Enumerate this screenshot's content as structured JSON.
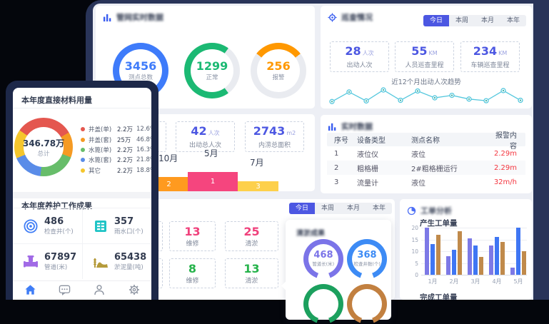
{
  "colors": {
    "navy_frame": "#293459",
    "phone_frame": "#1d2849",
    "dash_bg": "#edeff5",
    "accent_indigo": "#4c57e2",
    "accent_blue": "#3e7bfa",
    "green": "#1bb973",
    "orange": "#ff9800",
    "pink": "#f0417c",
    "stat_green": "#26b34b",
    "alarm_red": "#f4353f",
    "line_cyan": "#54c7dd"
  },
  "network_panel": {
    "title": "管网实时数据"
  },
  "inspection_panel": {
    "title": "巡查情况",
    "tabs": [
      "今日",
      "本周",
      "本月",
      "本年"
    ],
    "active_tab": "今日",
    "stats": [
      {
        "value": "28",
        "unit": "人次",
        "label": "出动人次"
      },
      {
        "value": "55",
        "unit": "KM",
        "label": "人员巡查里程"
      },
      {
        "value": "234",
        "unit": "KM",
        "label": "车辆巡查里程"
      }
    ],
    "trend_title": "近12个月出动人次趋势"
  },
  "realtime_panel": {
    "title": "实时数据",
    "table": {
      "headers": [
        "序号",
        "设备类型",
        "测点名称",
        "报警内容"
      ],
      "rows": [
        [
          "1",
          "液位仪",
          "液位",
          "2.29m"
        ],
        [
          "2",
          "粗格栅",
          "2#粗格栅运行",
          "2.29m"
        ],
        [
          "3",
          "流量计",
          "液位",
          "32m/h"
        ]
      ]
    }
  },
  "dispatch_panel": {
    "stats": [
      {
        "value": "42",
        "unit": "人次",
        "label": "出动总人次"
      },
      {
        "value": "2743",
        "unit": "m2",
        "label": "内涝总面积"
      }
    ]
  },
  "work_panel": {
    "tabs": [
      "今日",
      "本周",
      "本月",
      "本年"
    ],
    "active_tab": "今日",
    "stats_rows": [
      [
        {
          "value": "13",
          "label": "维修"
        },
        {
          "value": "25",
          "label": "清淤"
        }
      ],
      [
        {
          "value": "8",
          "label": "维修"
        },
        {
          "value": "13",
          "label": "清淤"
        }
      ]
    ],
    "results_title": "清淤成果"
  },
  "workorder_panel": {
    "title": "工单分析",
    "subtitle1": "产生工单量",
    "subtitle2": "完成工单量"
  },
  "phone": {
    "materials_title": "本年度直接材料用量",
    "materials_total": "346.78万",
    "materials_total_label": "总计",
    "maintenance_title": "本年度养护工作成果",
    "maintenance_stats": [
      {
        "value": "486",
        "label": "检查井(个)",
        "icon": "well-icon"
      },
      {
        "value": "357",
        "label": "雨水口(个)",
        "icon": "grate-icon"
      },
      {
        "value": "67897",
        "label": "管道(米)",
        "icon": "pipe-icon"
      },
      {
        "value": "65438",
        "label": "淤泥量(吨)",
        "icon": "sludge-icon"
      }
    ]
  },
  "chart_data": [
    {
      "id": "network-rings",
      "type": "pie",
      "title": "管网实时数据",
      "items": [
        {
          "label": "测点总数",
          "value": "3456",
          "pct": 100,
          "from": 0,
          "color": "#3e7bfa"
        },
        {
          "label": "正常",
          "value": "1299",
          "pct": 70,
          "from": 144,
          "color": "#1bb973"
        },
        {
          "label": "报警",
          "value": "256",
          "pct": 29,
          "from": -52,
          "color": "#ff9800"
        }
      ]
    },
    {
      "id": "inspection-trend",
      "type": "line",
      "title": "近12个月出动人次趋势",
      "x": [
        "1",
        "2",
        "3",
        "4",
        "5",
        "6",
        "7",
        "8",
        "9",
        "10",
        "11",
        "12"
      ],
      "values": [
        30,
        76,
        33,
        86,
        36,
        81,
        48,
        60,
        42,
        34,
        83,
        36
      ],
      "ylim": [
        0,
        100
      ],
      "color": "#54c7dd",
      "grid": false,
      "legend": "none"
    },
    {
      "id": "materials-donut",
      "type": "pie",
      "title": "本年度直接材料用量",
      "total": "346.78万",
      "total_label": "总计",
      "categories": [
        "井盖(单)",
        "井盖(套)",
        "水篦(单)",
        "水篦(套)",
        "其它"
      ],
      "values": [
        "2.2万",
        "25万",
        "2.2万",
        "2.2万",
        "2.2万"
      ],
      "pcts": [
        12.6,
        46.8,
        16.3,
        21.8,
        18.8
      ],
      "ring_pcts": [
        32,
        14,
        21,
        17,
        16
      ],
      "colors": [
        "#e4574f",
        "#f59a23",
        "#67bd6a",
        "#5a8ce8",
        "#f5c62d"
      ],
      "start_deg": -55,
      "legend_position": "right"
    },
    {
      "id": "month-rank",
      "type": "bar",
      "categories": [
        "10月",
        "5月",
        "7月"
      ],
      "values": [
        2,
        1,
        3
      ],
      "heights": [
        20,
        27,
        14
      ],
      "colors": [
        "#ff9a1f",
        "#f5457e",
        "#fdd04b"
      ]
    },
    {
      "id": "dredge-gauges",
      "type": "pie",
      "title": "清淤成果",
      "items": [
        {
          "label": "管道长(米)",
          "value": "468",
          "pct": 78,
          "color": "#7b74e8"
        },
        {
          "label": "检查井数(个)",
          "value": "368",
          "pct": 78,
          "color": "#3d8bf5"
        },
        {
          "label": "",
          "value": "",
          "pct": 78,
          "color": "#1ca05e"
        },
        {
          "label": "",
          "value": "",
          "pct": 78,
          "color": "#c28040"
        }
      ]
    },
    {
      "id": "workorder-bars",
      "type": "bar",
      "title": "产生工单量",
      "categories": [
        "1月",
        "2月",
        "3月",
        "4月",
        "5月"
      ],
      "ylim": [
        0,
        20
      ],
      "yticks": [
        0,
        5,
        10,
        15,
        20
      ],
      "grid": true,
      "series": [
        {
          "color": "#7d79e6",
          "values": [
            20,
            8,
            15.5,
            12.5,
            3
          ]
        },
        {
          "color": "#3f76f3",
          "values": [
            13,
            10.5,
            12.5,
            16,
            20
          ]
        },
        {
          "color": "#c08a4b",
          "values": [
            17,
            18.5,
            7.5,
            14,
            10
          ]
        }
      ]
    }
  ]
}
